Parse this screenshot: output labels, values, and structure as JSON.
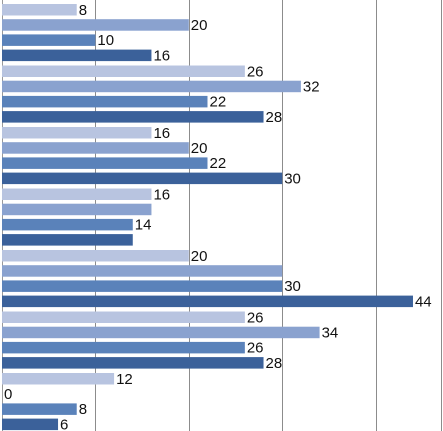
{
  "chart_data": {
    "type": "bar",
    "orientation": "horizontal",
    "title": "",
    "xlabel": "",
    "ylabel": "",
    "xlim": [
      0,
      47
    ],
    "grid": {
      "vertical": true,
      "values": [
        0,
        10,
        20,
        30,
        40,
        47
      ]
    },
    "legend": "none",
    "series_colors": [
      "#b8c4e0",
      "#8aa2cf",
      "#5a82ba",
      "#3b619a"
    ],
    "groups": [
      {
        "values": [
          8,
          20,
          10,
          16
        ]
      },
      {
        "values": [
          26,
          32,
          22,
          28
        ]
      },
      {
        "values": [
          16,
          20,
          22,
          30
        ]
      },
      {
        "values": [
          16,
          16,
          14,
          14
        ]
      },
      {
        "values": [
          20,
          30,
          30,
          44
        ]
      },
      {
        "values": [
          26,
          34,
          26,
          28
        ]
      },
      {
        "values": [
          12,
          0,
          8,
          6
        ]
      }
    ],
    "data_labels": [
      [
        "8",
        "20",
        "10",
        "16"
      ],
      [
        "26",
        "32",
        "22",
        "28"
      ],
      [
        "16",
        "20",
        "22",
        "30"
      ],
      [
        "16",
        "",
        "14",
        ""
      ],
      [
        "20",
        "",
        "30",
        "44"
      ],
      [
        "26",
        "34",
        "26",
        "28"
      ],
      [
        "12",
        "0",
        "8",
        "6"
      ]
    ]
  }
}
